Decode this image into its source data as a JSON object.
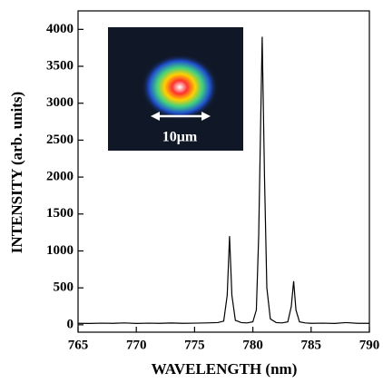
{
  "chart_data": {
    "type": "line",
    "x_label": "WAVELENGTH (nm)",
    "y_label": "INTENSITY (arb. units)",
    "inset_label": "10μm",
    "xlim": [
      765,
      790
    ],
    "xticks": [
      765,
      770,
      775,
      780,
      785,
      790
    ],
    "ylim": [
      -100,
      4250
    ],
    "yticks": [
      0,
      500,
      1000,
      1500,
      2000,
      2500,
      3000,
      3500,
      4000
    ],
    "x": [
      765,
      766,
      767,
      768,
      769,
      770,
      771,
      772,
      773,
      774,
      775,
      776,
      777,
      777.5,
      777.8,
      778,
      778.2,
      778.5,
      779,
      779.5,
      780,
      780.3,
      780.5,
      780.8,
      781,
      781.2,
      781.5,
      782,
      782.5,
      783,
      783.3,
      783.5,
      783.7,
      784,
      784.5,
      785,
      786,
      787,
      788,
      789,
      790
    ],
    "series": [
      {
        "color": "#000000",
        "values": [
          20,
          18,
          22,
          20,
          25,
          18,
          22,
          20,
          24,
          20,
          22,
          25,
          30,
          50,
          400,
          1200,
          400,
          60,
          30,
          25,
          40,
          200,
          1200,
          3900,
          2000,
          500,
          80,
          30,
          25,
          40,
          250,
          590,
          200,
          40,
          25,
          20,
          22,
          18,
          30,
          20,
          20
        ]
      }
    ]
  }
}
